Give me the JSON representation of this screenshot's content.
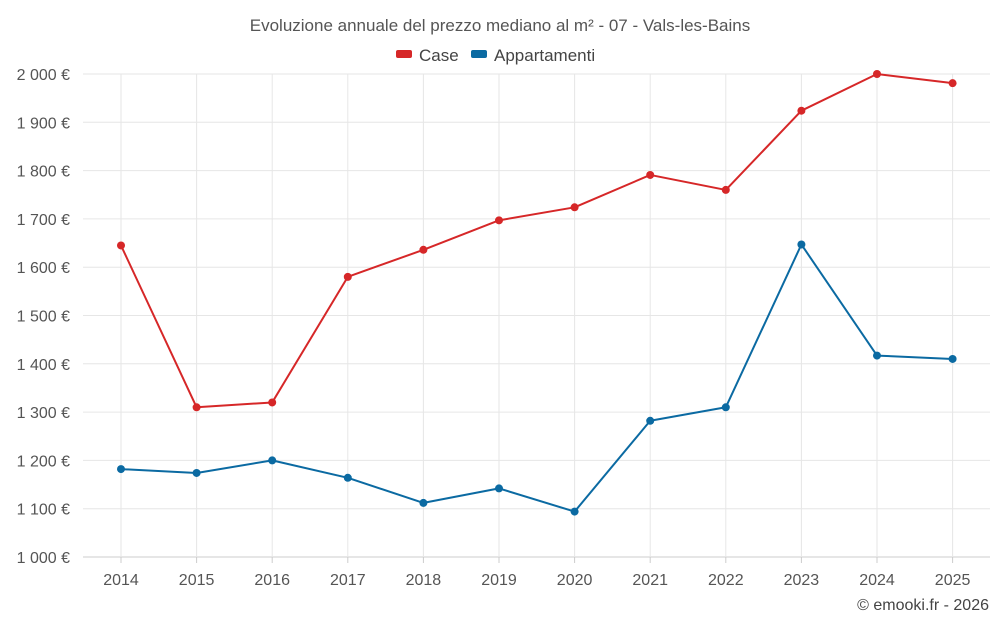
{
  "colors": {
    "case": "#d62728",
    "appartamenti": "#0b6aa2"
  },
  "credit": "© emooki.fr - 2026",
  "chart_data": {
    "type": "line",
    "title": "Evoluzione annuale del prezzo mediano al m² - 07 - Vals-les-Bains",
    "x": [
      "2014",
      "2015",
      "2016",
      "2017",
      "2018",
      "2019",
      "2020",
      "2021",
      "2022",
      "2023",
      "2024",
      "2025"
    ],
    "ylim": [
      1000,
      2000
    ],
    "yticks": [
      1000,
      1100,
      1200,
      1300,
      1400,
      1500,
      1600,
      1700,
      1800,
      1900,
      2000
    ],
    "ytick_labels": [
      "1 000 €",
      "1 100 €",
      "1 200 €",
      "1 300 €",
      "1 400 €",
      "1 500 €",
      "1 600 €",
      "1 700 €",
      "1 800 €",
      "1 900 €",
      "2 000 €"
    ],
    "legend_position": "top-center",
    "grid": true,
    "series": [
      {
        "name": "Case",
        "key": "case",
        "values": [
          1645,
          1310,
          1320,
          1580,
          1636,
          1697,
          1724,
          1791,
          1760,
          1924,
          2000,
          1981
        ]
      },
      {
        "name": "Appartamenti",
        "key": "appartamenti",
        "values": [
          1182,
          1174,
          1200,
          1164,
          1112,
          1142,
          1094,
          1282,
          1310,
          1647,
          1417,
          1410
        ]
      }
    ]
  }
}
